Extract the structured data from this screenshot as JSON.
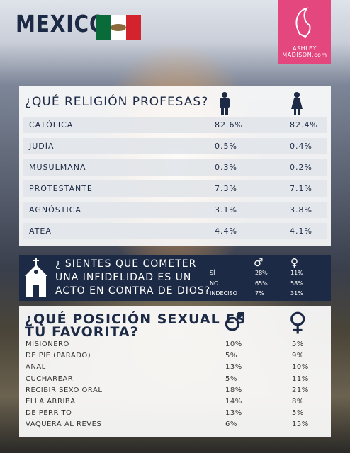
{
  "header": {
    "title": "MEXICO",
    "logo": [
      "ASHLEY",
      "MADISON.com"
    ]
  },
  "religion": {
    "title": "¿QUÉ RELIGIÓN PROFESAS?",
    "rows": [
      [
        "CATÓLICA",
        "82.6%",
        "82.4%"
      ],
      [
        "JUDÍA",
        "0.5%",
        "0.4%"
      ],
      [
        "MUSULMANA",
        "0.3%",
        "0.2%"
      ],
      [
        "PROTESTANTE",
        "7.3%",
        "7.1%"
      ],
      [
        "AGNÓSTICA",
        "3.1%",
        "3.8%"
      ],
      [
        "ATEA",
        "4.4%",
        "4.1%"
      ]
    ]
  },
  "infidelity": {
    "question": [
      "¿ SIENTES QUE COMETER",
      "UNA INFIDELIDAD ES UN",
      "ACTO EN CONTRA DE DIOS?"
    ],
    "male_symbol": "♂",
    "female_symbol": "♀",
    "rows": [
      [
        "SÍ",
        "28%",
        "11%"
      ],
      [
        "NO",
        "65%",
        "58%"
      ],
      [
        "INDECISO",
        "7%",
        "31%"
      ]
    ]
  },
  "positions": {
    "title": [
      "¿QUÉ POSICIÓN SEXUAL ES",
      "TU FAVORITA?"
    ],
    "male_symbol": "♂",
    "female_symbol": "♀",
    "rows": [
      [
        "MISIONERO",
        "10%",
        "5%"
      ],
      [
        "DE PIE (PARADO)",
        "5%",
        "9%"
      ],
      [
        "ANAL",
        "13%",
        "10%"
      ],
      [
        "CUCHAREAR",
        "5%",
        "11%"
      ],
      [
        "RECIBIR SEXO ORAL",
        "18%",
        "21%"
      ],
      [
        "ELLA ARRIBA",
        "14%",
        "8%"
      ],
      [
        "DE PERRITO",
        "13%",
        "5%"
      ],
      [
        "VAQUERA AL REVÉS",
        "6%",
        "15%"
      ]
    ]
  }
}
